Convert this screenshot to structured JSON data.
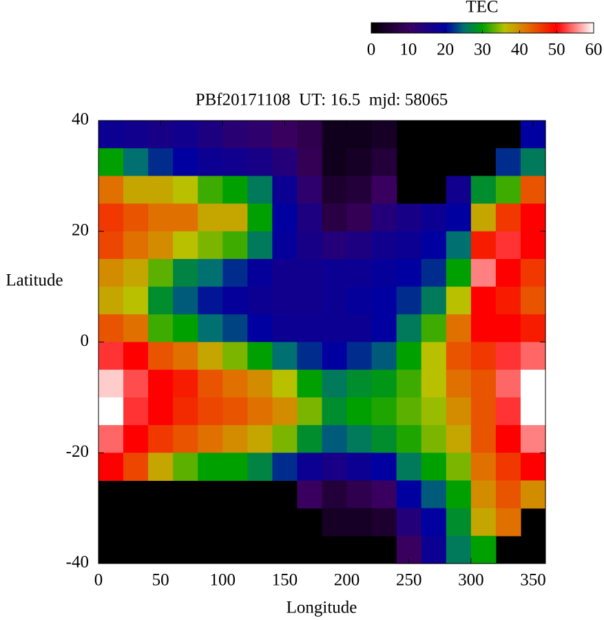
{
  "chart_data": {
    "type": "heatmap",
    "title": "PBf20171108  UT: 16.5  mjd: 58065",
    "xlabel": "Longitude",
    "ylabel": "Latitude",
    "colorbar_label": "TEC",
    "xlim": [
      0,
      360
    ],
    "ylim": [
      -40,
      40
    ],
    "xticks": [
      0,
      50,
      100,
      150,
      200,
      250,
      300,
      350
    ],
    "yticks": [
      -40,
      -20,
      0,
      20,
      40
    ],
    "clim": [
      0,
      60
    ],
    "cticks": [
      0,
      10,
      20,
      30,
      40,
      50,
      60
    ],
    "missing_color": "#000000",
    "colormap": [
      {
        "value": 0,
        "color": "#000000"
      },
      {
        "value": 10,
        "color": "#3a0060"
      },
      {
        "value": 20,
        "color": "#0000a0"
      },
      {
        "value": 25,
        "color": "#007070"
      },
      {
        "value": 30,
        "color": "#00a000"
      },
      {
        "value": 36,
        "color": "#b8c000"
      },
      {
        "value": 42,
        "color": "#e07000"
      },
      {
        "value": 50,
        "color": "#ff0000"
      },
      {
        "value": 60,
        "color": "#ffffff"
      }
    ],
    "z": [
      [
        18,
        17,
        16,
        17,
        15,
        13,
        12,
        10,
        8,
        3,
        3,
        4,
        null,
        null,
        null,
        null,
        null,
        20
      ],
      [
        30,
        25,
        22,
        20,
        18,
        17,
        16,
        14,
        9,
        3,
        4,
        6,
        null,
        null,
        null,
        null,
        22,
        26
      ],
      [
        42,
        38,
        38,
        36,
        32,
        30,
        26,
        18,
        12,
        5,
        6,
        10,
        null,
        null,
        17,
        28,
        32,
        44
      ],
      [
        46,
        44,
        42,
        42,
        38,
        38,
        30,
        20,
        15,
        7,
        9,
        14,
        16,
        18,
        20,
        38,
        46,
        50
      ],
      [
        45,
        42,
        40,
        36,
        34,
        32,
        26,
        19,
        16,
        14,
        15,
        17,
        18,
        20,
        25,
        48,
        52,
        50
      ],
      [
        40,
        38,
        33,
        27,
        25,
        22,
        19,
        17,
        17,
        18,
        18,
        19,
        20,
        22,
        30,
        55,
        50,
        46
      ],
      [
        38,
        36,
        28,
        24,
        21,
        19,
        18,
        17,
        17,
        18,
        19,
        20,
        22,
        26,
        36,
        50,
        48,
        44
      ],
      [
        44,
        42,
        32,
        30,
        25,
        23,
        20,
        18,
        18,
        18,
        18,
        20,
        26,
        32,
        42,
        50,
        50,
        48
      ],
      [
        52,
        50,
        44,
        42,
        38,
        34,
        30,
        25,
        22,
        20,
        22,
        24,
        30,
        36,
        44,
        46,
        52,
        54
      ],
      [
        58,
        53,
        50,
        48,
        44,
        42,
        40,
        36,
        30,
        26,
        28,
        29,
        32,
        36,
        42,
        44,
        54,
        60
      ],
      [
        60,
        52,
        50,
        47,
        45,
        44,
        42,
        40,
        34,
        28,
        30,
        31,
        33,
        35,
        40,
        44,
        52,
        60
      ],
      [
        54,
        50,
        46,
        44,
        42,
        40,
        38,
        34,
        28,
        24,
        26,
        28,
        31,
        34,
        38,
        44,
        50,
        55
      ],
      [
        50,
        45,
        38,
        33,
        30,
        30,
        27,
        22,
        18,
        16,
        18,
        20,
        26,
        30,
        34,
        42,
        46,
        50
      ],
      [
        null,
        null,
        null,
        null,
        null,
        null,
        null,
        null,
        10,
        6,
        8,
        10,
        20,
        24,
        30,
        40,
        44,
        40
      ],
      [
        null,
        null,
        null,
        null,
        null,
        null,
        null,
        null,
        null,
        4,
        4,
        5,
        14,
        20,
        28,
        38,
        42,
        null
      ],
      [
        null,
        null,
        null,
        null,
        null,
        null,
        null,
        null,
        null,
        null,
        null,
        null,
        10,
        18,
        26,
        30,
        null,
        null
      ]
    ]
  }
}
